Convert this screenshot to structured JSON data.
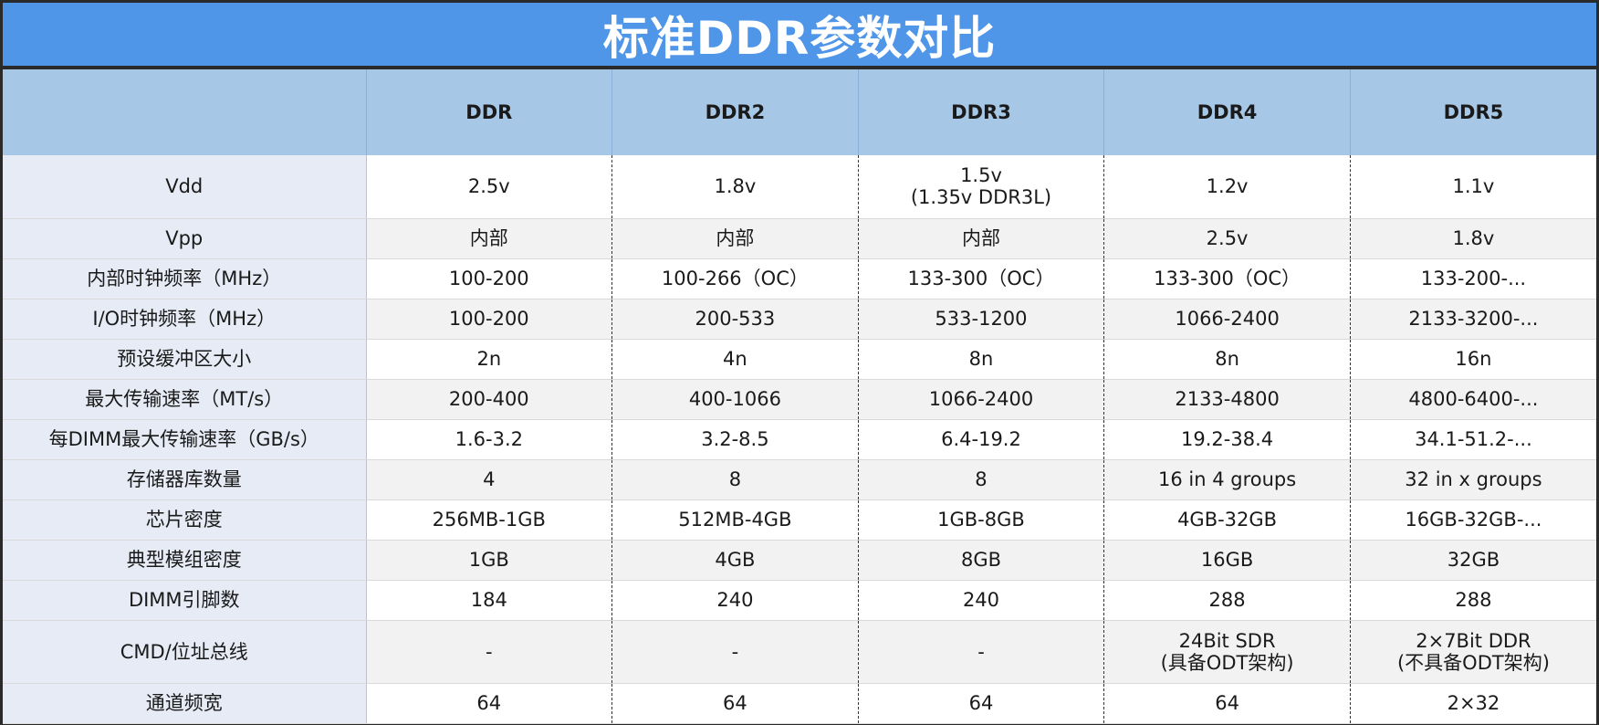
{
  "title": "标准DDR参数对比",
  "columns": [
    "DDR",
    "DDR2",
    "DDR3",
    "DDR4",
    "DDR5"
  ],
  "rows": [
    {
      "label": "Vdd",
      "cells": [
        [
          "2.5v"
        ],
        [
          "1.8v"
        ],
        [
          "1.5v",
          "(1.35v DDR3L)"
        ],
        [
          "1.2v"
        ],
        [
          "1.1v"
        ]
      ]
    },
    {
      "label": "Vpp",
      "cells": [
        [
          "内部"
        ],
        [
          "内部"
        ],
        [
          "内部"
        ],
        [
          "2.5v"
        ],
        [
          "1.8v"
        ]
      ]
    },
    {
      "label": "内部时钟频率（MHz）",
      "cells": [
        [
          "100-200"
        ],
        [
          "100-266（OC）"
        ],
        [
          "133-300（OC）"
        ],
        [
          "133-300（OC）"
        ],
        [
          "133-200-..."
        ]
      ]
    },
    {
      "label": "I/O时钟频率（MHz）",
      "cells": [
        [
          "100-200"
        ],
        [
          "200-533"
        ],
        [
          "533-1200"
        ],
        [
          "1066-2400"
        ],
        [
          "2133-3200-..."
        ]
      ]
    },
    {
      "label": "预设缓冲区大小",
      "cells": [
        [
          "2n"
        ],
        [
          "4n"
        ],
        [
          "8n"
        ],
        [
          "8n"
        ],
        [
          "16n"
        ]
      ]
    },
    {
      "label": "最大传输速率（MT/s）",
      "cells": [
        [
          "200-400"
        ],
        [
          "400-1066"
        ],
        [
          "1066-2400"
        ],
        [
          "2133-4800"
        ],
        [
          "4800-6400-..."
        ]
      ]
    },
    {
      "label": "每DIMM最大传输速率（GB/s）",
      "cells": [
        [
          "1.6-3.2"
        ],
        [
          "3.2-8.5"
        ],
        [
          "6.4-19.2"
        ],
        [
          "19.2-38.4"
        ],
        [
          "34.1-51.2-..."
        ]
      ]
    },
    {
      "label": "存储器库数量",
      "cells": [
        [
          "4"
        ],
        [
          "8"
        ],
        [
          "8"
        ],
        [
          "16 in 4 groups"
        ],
        [
          "32 in x groups"
        ]
      ]
    },
    {
      "label": "芯片密度",
      "cells": [
        [
          "256MB-1GB"
        ],
        [
          "512MB-4GB"
        ],
        [
          "1GB-8GB"
        ],
        [
          "4GB-32GB"
        ],
        [
          "16GB-32GB-..."
        ]
      ]
    },
    {
      "label": "典型模组密度",
      "cells": [
        [
          "1GB"
        ],
        [
          "4GB"
        ],
        [
          "8GB"
        ],
        [
          "16GB"
        ],
        [
          "32GB"
        ]
      ]
    },
    {
      "label": "DIMM引脚数",
      "cells": [
        [
          "184"
        ],
        [
          "240"
        ],
        [
          "240"
        ],
        [
          "288"
        ],
        [
          "288"
        ]
      ]
    },
    {
      "label": "CMD/位址总线",
      "cells": [
        [
          "-"
        ],
        [
          "-"
        ],
        [
          "-"
        ],
        [
          "24Bit SDR",
          "(具备ODT架构)"
        ],
        [
          "2×7Bit DDR",
          "(不具备ODT架构)"
        ]
      ]
    },
    {
      "label": "通道频宽",
      "cells": [
        [
          "64"
        ],
        [
          "64"
        ],
        [
          "64"
        ],
        [
          "64"
        ],
        [
          "2×32"
        ]
      ]
    }
  ]
}
